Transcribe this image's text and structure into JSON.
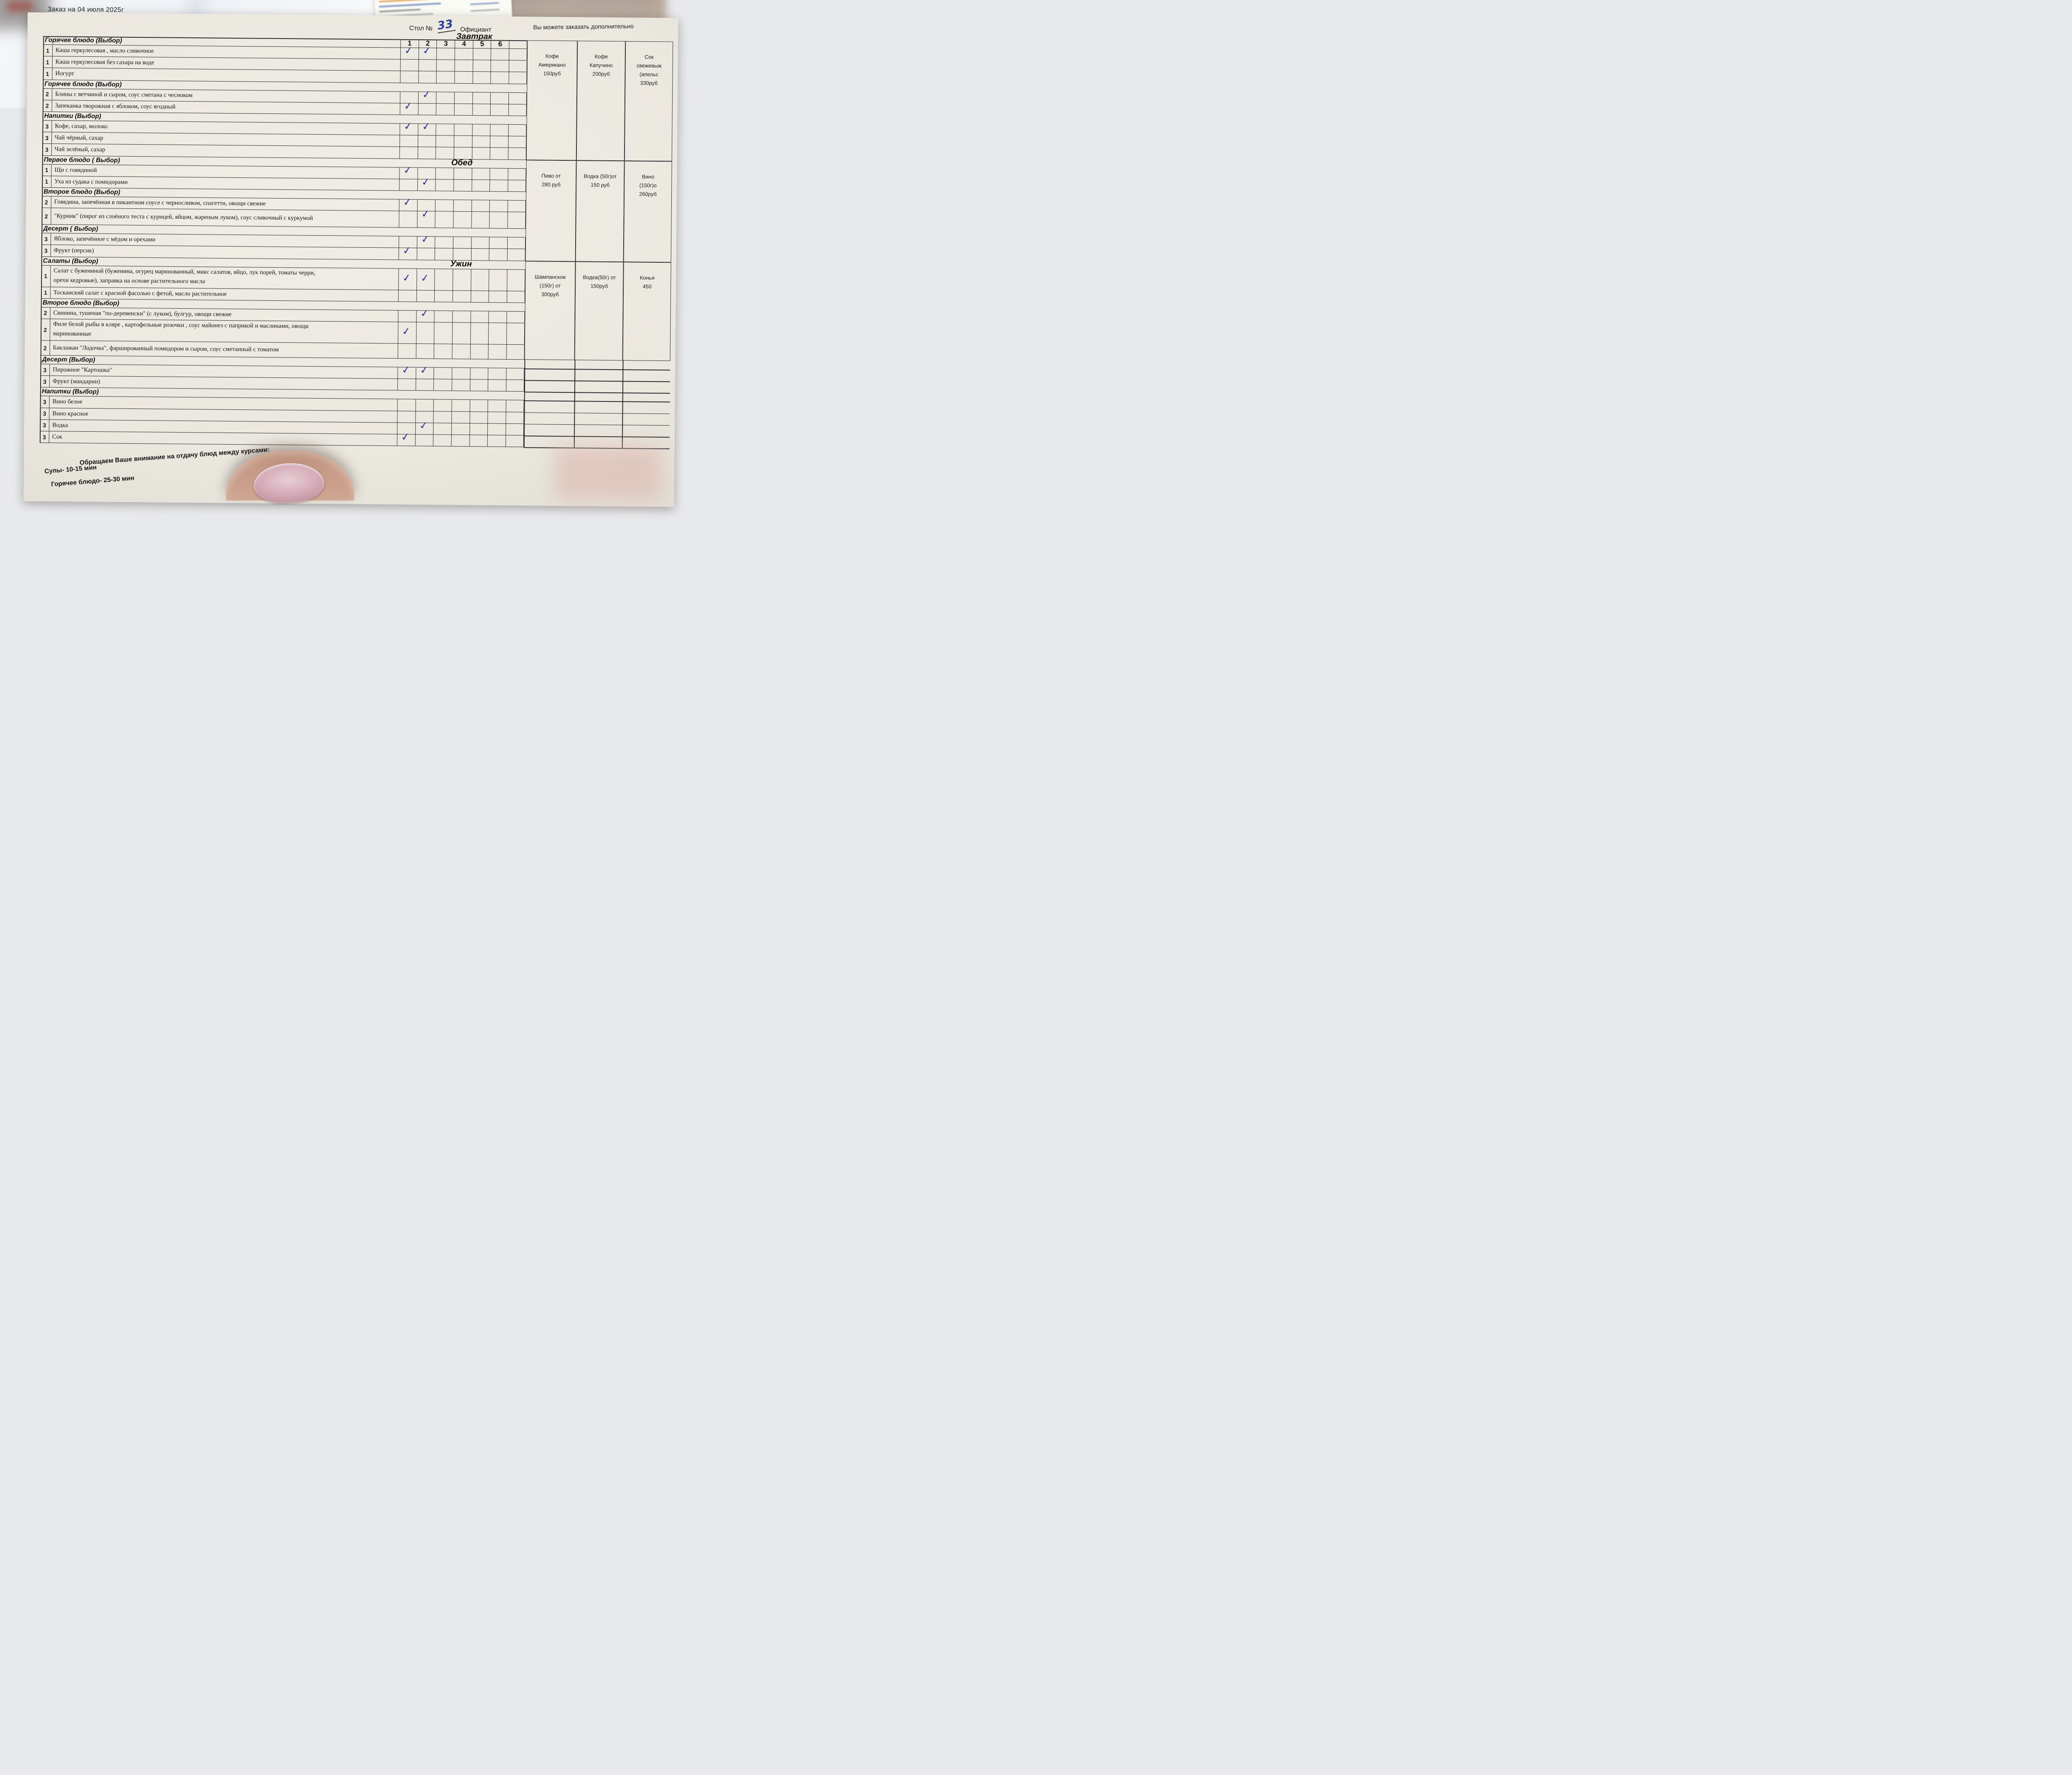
{
  "colors": {
    "paper": "#ece9e1",
    "ink": "#26262b",
    "pen_blue": "#2f3c96",
    "wood": "#7b5a3e"
  },
  "header": {
    "date_line": "Заказ на  04 июля  2025г",
    "table_label": "Стол №",
    "table_number": "33",
    "waiter_label": "Официант",
    "extra_note": "Вы можете заказать дополнительно"
  },
  "meal_labels": {
    "breakfast": "Завтрак",
    "lunch": "Обед",
    "dinner": "Ужин"
  },
  "guest_columns": [
    "1",
    "2",
    "3",
    "4",
    "5",
    "6"
  ],
  "glyphs": {
    "check": "✓"
  },
  "rows": [
    {
      "k": "h",
      "t": "Горячее блюдо (Выбор)",
      "digits": true
    },
    {
      "k": "i",
      "n": "1",
      "t": "Каша  геркулесовая , масло сливочное",
      "checks": [
        1,
        2
      ]
    },
    {
      "k": "i",
      "n": "1",
      "t": "Каша геркулесовая без сахара на воде"
    },
    {
      "k": "i",
      "n": "1",
      "t": "Иогурт"
    },
    {
      "k": "h",
      "t": "Горячее блюдо (Выбор)"
    },
    {
      "k": "i",
      "n": "2",
      "t": "Блины с ветчиной и сыром, соус сметана с чесноком",
      "checks": [
        2
      ]
    },
    {
      "k": "i",
      "n": "2",
      "t": "Запеканка творожная с яблоком, соус ягодный",
      "checks": [
        1
      ]
    },
    {
      "k": "h",
      "t": "Напитки (Выбор)"
    },
    {
      "k": "i",
      "n": "3",
      "t": "Кофе, сахар, молоко",
      "checks": [
        1,
        2
      ]
    },
    {
      "k": "i",
      "n": "3",
      "t": "Чай чёрный, сахар"
    },
    {
      "k": "i",
      "n": "3",
      "t": "Чай зелёный, сахар"
    },
    {
      "k": "h",
      "t": "Первое блюдо ( Выбор)",
      "meal": "lunch"
    },
    {
      "k": "i",
      "n": "1",
      "t": "Щи с говядиной",
      "checks": [
        1
      ]
    },
    {
      "k": "i",
      "n": "1",
      "t": "Уха из судака с помидорами",
      "checks": [
        2
      ]
    },
    {
      "k": "h",
      "t": "Второе блюдо  (Выбор)"
    },
    {
      "k": "i",
      "n": "2",
      "t": "Говядина, запечённая в пикантном соусе с черносливом, спагетти, овощи свежие",
      "checks": [
        1
      ]
    },
    {
      "k": "i",
      "n": "2",
      "t": "\"Курник\" (пирог из слоёного теста с курицей, яйцом, жареным луком), соус сливочный с куркумой",
      "checks": [
        2
      ]
    },
    {
      "k": "h",
      "t": "Десерт ( Выбор)"
    },
    {
      "k": "i",
      "n": "3",
      "t": "Яблоко, запечённое с мёдом и орехами",
      "checks": [
        2
      ]
    },
    {
      "k": "i",
      "n": "3",
      "t": "Фрукт (персик)",
      "checks": [
        1
      ]
    },
    {
      "k": "h",
      "t": "Салаты (Выбор)",
      "meal": "dinner"
    },
    {
      "k": "i",
      "n": "1",
      "t": "Салат с бужениной (буженина, огурец маринованный, микс салатов, яйцо, лук порей, томаты черри,",
      "t2": "орехи кедровые), заправка на основе растительного масла",
      "checks": [
        1,
        2
      ]
    },
    {
      "k": "i",
      "n": "1",
      "t": "Тосканский салат с красной фасолью с фетой, масло растительное"
    },
    {
      "k": "h",
      "t": "Второе блюдо (Выбор)"
    },
    {
      "k": "i",
      "n": "2",
      "t": "Свинина, тушеная \"по-деревенски\" (с луком), булгур, овощи свежие",
      "checks": [
        2
      ]
    },
    {
      "k": "i",
      "n": "2",
      "t": "Филе белой рыбы в кляре , картофельные розочки , соус майонез с паприкой и маслинами, овощи",
      "t2": "маринованные",
      "checks": [
        1
      ]
    },
    {
      "k": "i",
      "n": "2",
      "t": "Баклажан \"Лодочка\", фаршированный помидором и сыром, соус сметанный с томатом"
    },
    {
      "k": "h",
      "t": "Десерт (Выбор)"
    },
    {
      "k": "i",
      "n": "3",
      "t": "Пирожное \"Картошка\"",
      "checks": [
        1,
        2
      ]
    },
    {
      "k": "i",
      "n": "3",
      "t": "Фрукт (мандарин)"
    },
    {
      "k": "h",
      "t": "Напитки (Выбор)"
    },
    {
      "k": "i",
      "n": "3",
      "t": "Вино белое"
    },
    {
      "k": "i",
      "n": "3",
      "t": "Вино красное"
    },
    {
      "k": "i",
      "n": "3",
      "t": "Водка",
      "checks": [
        2
      ]
    },
    {
      "k": "i",
      "n": "3",
      "t": "Сок",
      "checks": [
        1
      ]
    }
  ],
  "price_sections": [
    {
      "meal": "Завтрак",
      "cells": [
        [
          "Кофе",
          "Американо",
          "150руб"
        ],
        [
          "Кофе",
          "Капучино",
          "200руб"
        ],
        [
          "Сок",
          "свежевыж",
          "(апельс",
          "330руб"
        ]
      ]
    },
    {
      "meal": "Обед",
      "cells": [
        [
          "Пиво от",
          "280 руб"
        ],
        [
          "Водка (50г)от",
          "150 руб"
        ],
        [
          "Вино",
          "(150г)о",
          "260руб"
        ]
      ]
    },
    {
      "meal": "Ужин",
      "cells": [
        [
          "Шампанское",
          "(150г) от",
          "300руб"
        ],
        [
          "Водка(50г) от",
          "150руб"
        ],
        [
          "Конья",
          "450"
        ]
      ]
    }
  ],
  "notes": [
    "Обращаем Ваше внимание на отдачу блюд между курсами:",
    "Супы- 10-15 мин",
    "Горячее блюдо- 25-30 мин"
  ]
}
